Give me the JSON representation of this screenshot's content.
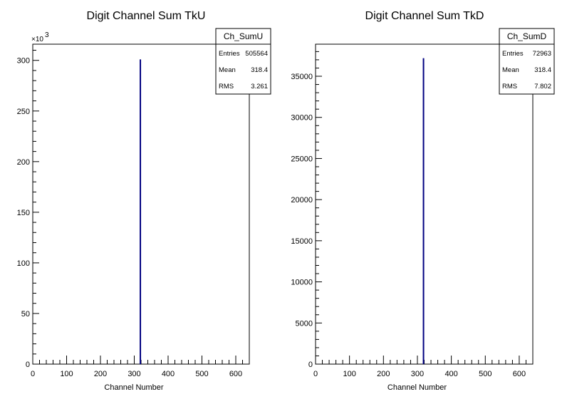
{
  "chart_data": [
    {
      "type": "bar",
      "title": "Digit Channel Sum TkU",
      "xlabel": "Channel Number",
      "ylabel": "",
      "xlim": [
        0,
        640
      ],
      "ylim": [
        0,
        316
      ],
      "y_multiplier_label": "×10",
      "y_multiplier_exponent": "3",
      "x_ticks": [
        0,
        100,
        200,
        300,
        400,
        500,
        600
      ],
      "y_ticks": [
        0,
        50,
        100,
        150,
        200,
        250,
        300
      ],
      "x_tick_labels": [
        "0",
        "100",
        "200",
        "300",
        "400",
        "500",
        "600"
      ],
      "y_tick_labels": [
        "0",
        "50",
        "100",
        "150",
        "200",
        "250",
        "300"
      ],
      "series": [
        {
          "x": [
            318
          ],
          "values": [
            301
          ],
          "color": "#000080"
        }
      ],
      "stats": {
        "name": "Ch_SumU",
        "rows": [
          {
            "label": "Entries",
            "value": "505564"
          },
          {
            "label": "Mean",
            "value": "318.4"
          },
          {
            "label": "RMS",
            "value": "3.261"
          }
        ]
      }
    },
    {
      "type": "bar",
      "title": "Digit Channel Sum TkD",
      "xlabel": "Channel Number",
      "ylabel": "",
      "xlim": [
        0,
        640
      ],
      "ylim": [
        0,
        38900
      ],
      "y_multiplier_label": "",
      "y_multiplier_exponent": "",
      "x_ticks": [
        0,
        100,
        200,
        300,
        400,
        500,
        600
      ],
      "y_ticks": [
        0,
        5000,
        10000,
        15000,
        20000,
        25000,
        30000,
        35000
      ],
      "x_tick_labels": [
        "0",
        "100",
        "200",
        "300",
        "400",
        "500",
        "600"
      ],
      "y_tick_labels": [
        "0",
        "5000",
        "10000",
        "15000",
        "20000",
        "25000",
        "30000",
        "35000"
      ],
      "series": [
        {
          "x": [
            318
          ],
          "values": [
            37200
          ],
          "color": "#000080"
        }
      ],
      "stats": {
        "name": "Ch_SumD",
        "rows": [
          {
            "label": "Entries",
            "value": "72963"
          },
          {
            "label": "Mean",
            "value": "318.4"
          },
          {
            "label": "RMS",
            "value": "7.802"
          }
        ]
      }
    }
  ]
}
